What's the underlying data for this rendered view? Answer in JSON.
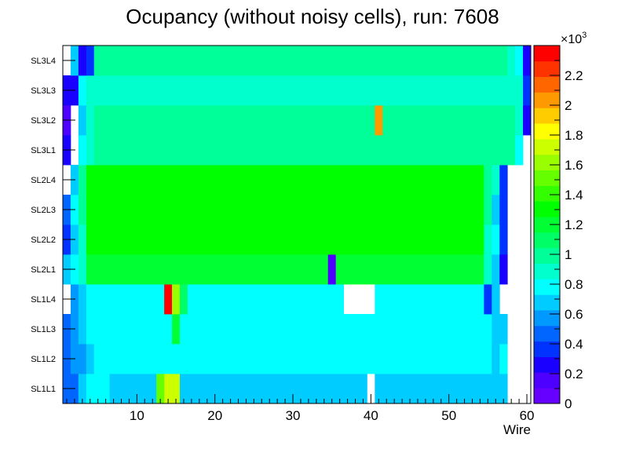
{
  "chart_data": {
    "type": "heatmap",
    "title": "Ocupancy (without noisy cells), run: 7608",
    "xlabel": "Wire",
    "ylabel": "",
    "xlim": [
      0.5,
      60.5
    ],
    "x_ticks": [
      10,
      20,
      30,
      40,
      50,
      60
    ],
    "y_categories": [
      "SL1L1",
      "SL1L2",
      "SL1L3",
      "SL1L4",
      "SL2L1",
      "SL2L2",
      "SL2L3",
      "SL2L4",
      "SL3L1",
      "SL3L2",
      "SL3L3",
      "SL3L4"
    ],
    "z_range": [
      0,
      2400
    ],
    "z_ticks": [
      0,
      0.2,
      0.4,
      0.6,
      0.8,
      1,
      1.2,
      1.4,
      1.6,
      1.8,
      2,
      2.2
    ],
    "z_exponent": "×10³",
    "z_exponent_base": "×10",
    "z_exponent_power": "3",
    "row_default": [
      700,
      800,
      750,
      750,
      1200,
      1300,
      1350,
      1300,
      1000,
      950,
      900,
      950
    ],
    "row_overrides": [
      {
        "row": "SL1L1",
        "values": {
          "1": 500,
          "2": 450,
          "3": 650,
          "4": 800,
          "5": 800,
          "6": 800,
          "13": 1500,
          "14": 1700,
          "15": 1700,
          "40": -1,
          "56": 700,
          "57": 650,
          "58": -1,
          "59": -1,
          "60": -1
        }
      },
      {
        "row": "SL1L2",
        "values": {
          "1": 450,
          "2": 550,
          "3": 600,
          "4": 650,
          "56": 700,
          "57": 750,
          "58": -1,
          "59": -1,
          "60": -1
        }
      },
      {
        "row": "SL1L3",
        "values": {
          "1": 450,
          "2": 600,
          "3": 700,
          "4": 750,
          "15": 1200,
          "56": 650,
          "57": 700,
          "58": -1,
          "59": -1,
          "60": -1
        }
      },
      {
        "row": "SL1L4",
        "values": {
          "1": -1,
          "2": 600,
          "3": 650,
          "14": 2300,
          "15": 1600,
          "16": 1100,
          "37": -1,
          "38": -1,
          "39": -1,
          "40": -1,
          "55": 400,
          "56": 700,
          "57": -1,
          "58": -1,
          "59": -1,
          "60": -1
        }
      },
      {
        "row": "SL2L1",
        "values": {
          "1": 700,
          "2": 800,
          "3": 900,
          "35": 200,
          "55": 900,
          "56": 700,
          "57": 300,
          "58": -1,
          "59": -1,
          "60": -1
        }
      },
      {
        "row": "SL2L2",
        "values": {
          "1": 400,
          "2": 700,
          "3": 900,
          "55": 900,
          "56": 750,
          "57": 400,
          "58": -1,
          "59": -1,
          "60": -1
        }
      },
      {
        "row": "SL2L3",
        "values": {
          "1": 500,
          "2": 750,
          "3": 950,
          "55": 950,
          "56": 700,
          "57": 400,
          "58": -1,
          "59": -1,
          "60": -1
        }
      },
      {
        "row": "SL2L4",
        "values": {
          "1": -1,
          "2": 700,
          "3": 950,
          "55": 1000,
          "56": 850,
          "57": 350,
          "58": -1,
          "59": -1,
          "60": -1
        }
      },
      {
        "row": "SL3L1",
        "values": {
          "1": 300,
          "2": -1,
          "3": 800,
          "4": 850,
          "59": 800,
          "60": -1
        }
      },
      {
        "row": "SL3L2",
        "values": {
          "1": 150,
          "2": -1,
          "3": 700,
          "4": 900,
          "41": 2050,
          "59": 850,
          "60": 300
        }
      },
      {
        "row": "SL3L3",
        "values": {
          "1": 300,
          "2": 300,
          "3": 800,
          "59": 900,
          "60": 350
        }
      },
      {
        "row": "SL3L4",
        "values": {
          "1": -1,
          "2": 700,
          "3": 300,
          "4": 350,
          "58": 850,
          "59": 800,
          "60": 300
        }
      }
    ]
  }
}
